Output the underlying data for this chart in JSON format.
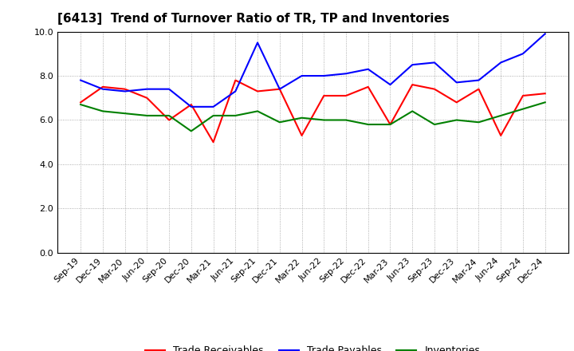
{
  "title": "[6413]  Trend of Turnover Ratio of TR, TP and Inventories",
  "xlabels": [
    "Sep-19",
    "Dec-19",
    "Mar-20",
    "Jun-20",
    "Sep-20",
    "Dec-20",
    "Mar-21",
    "Jun-21",
    "Sep-21",
    "Dec-21",
    "Mar-22",
    "Jun-22",
    "Sep-22",
    "Dec-22",
    "Mar-23",
    "Jun-23",
    "Sep-23",
    "Dec-23",
    "Mar-24",
    "Jun-24",
    "Sep-24",
    "Dec-24"
  ],
  "trade_receivables": [
    6.8,
    7.5,
    7.4,
    7.0,
    6.0,
    6.7,
    5.0,
    7.8,
    7.3,
    7.4,
    5.3,
    7.1,
    7.1,
    7.5,
    5.8,
    7.6,
    7.4,
    6.8,
    7.4,
    5.3,
    7.1,
    7.2
  ],
  "trade_payables": [
    7.8,
    7.4,
    7.3,
    7.4,
    7.4,
    6.6,
    6.6,
    7.3,
    9.5,
    7.4,
    8.0,
    8.0,
    8.1,
    8.3,
    7.6,
    8.5,
    8.6,
    7.7,
    7.8,
    8.6,
    9.0,
    9.9
  ],
  "inventories": [
    6.7,
    6.4,
    6.3,
    6.2,
    6.2,
    5.5,
    6.2,
    6.2,
    6.4,
    5.9,
    6.1,
    6.0,
    6.0,
    5.8,
    5.8,
    6.4,
    5.8,
    6.0,
    5.9,
    6.2,
    6.5,
    6.8
  ],
  "ylim": [
    0.0,
    10.0
  ],
  "yticks": [
    0.0,
    2.0,
    4.0,
    6.0,
    8.0,
    10.0
  ],
  "line_colors": {
    "trade_receivables": "#ff0000",
    "trade_payables": "#0000ff",
    "inventories": "#008000"
  },
  "legend_labels": [
    "Trade Receivables",
    "Trade Payables",
    "Inventories"
  ],
  "background_color": "#ffffff",
  "grid_color": "#999999",
  "title_fontsize": 11,
  "axis_fontsize": 8,
  "legend_fontsize": 9
}
